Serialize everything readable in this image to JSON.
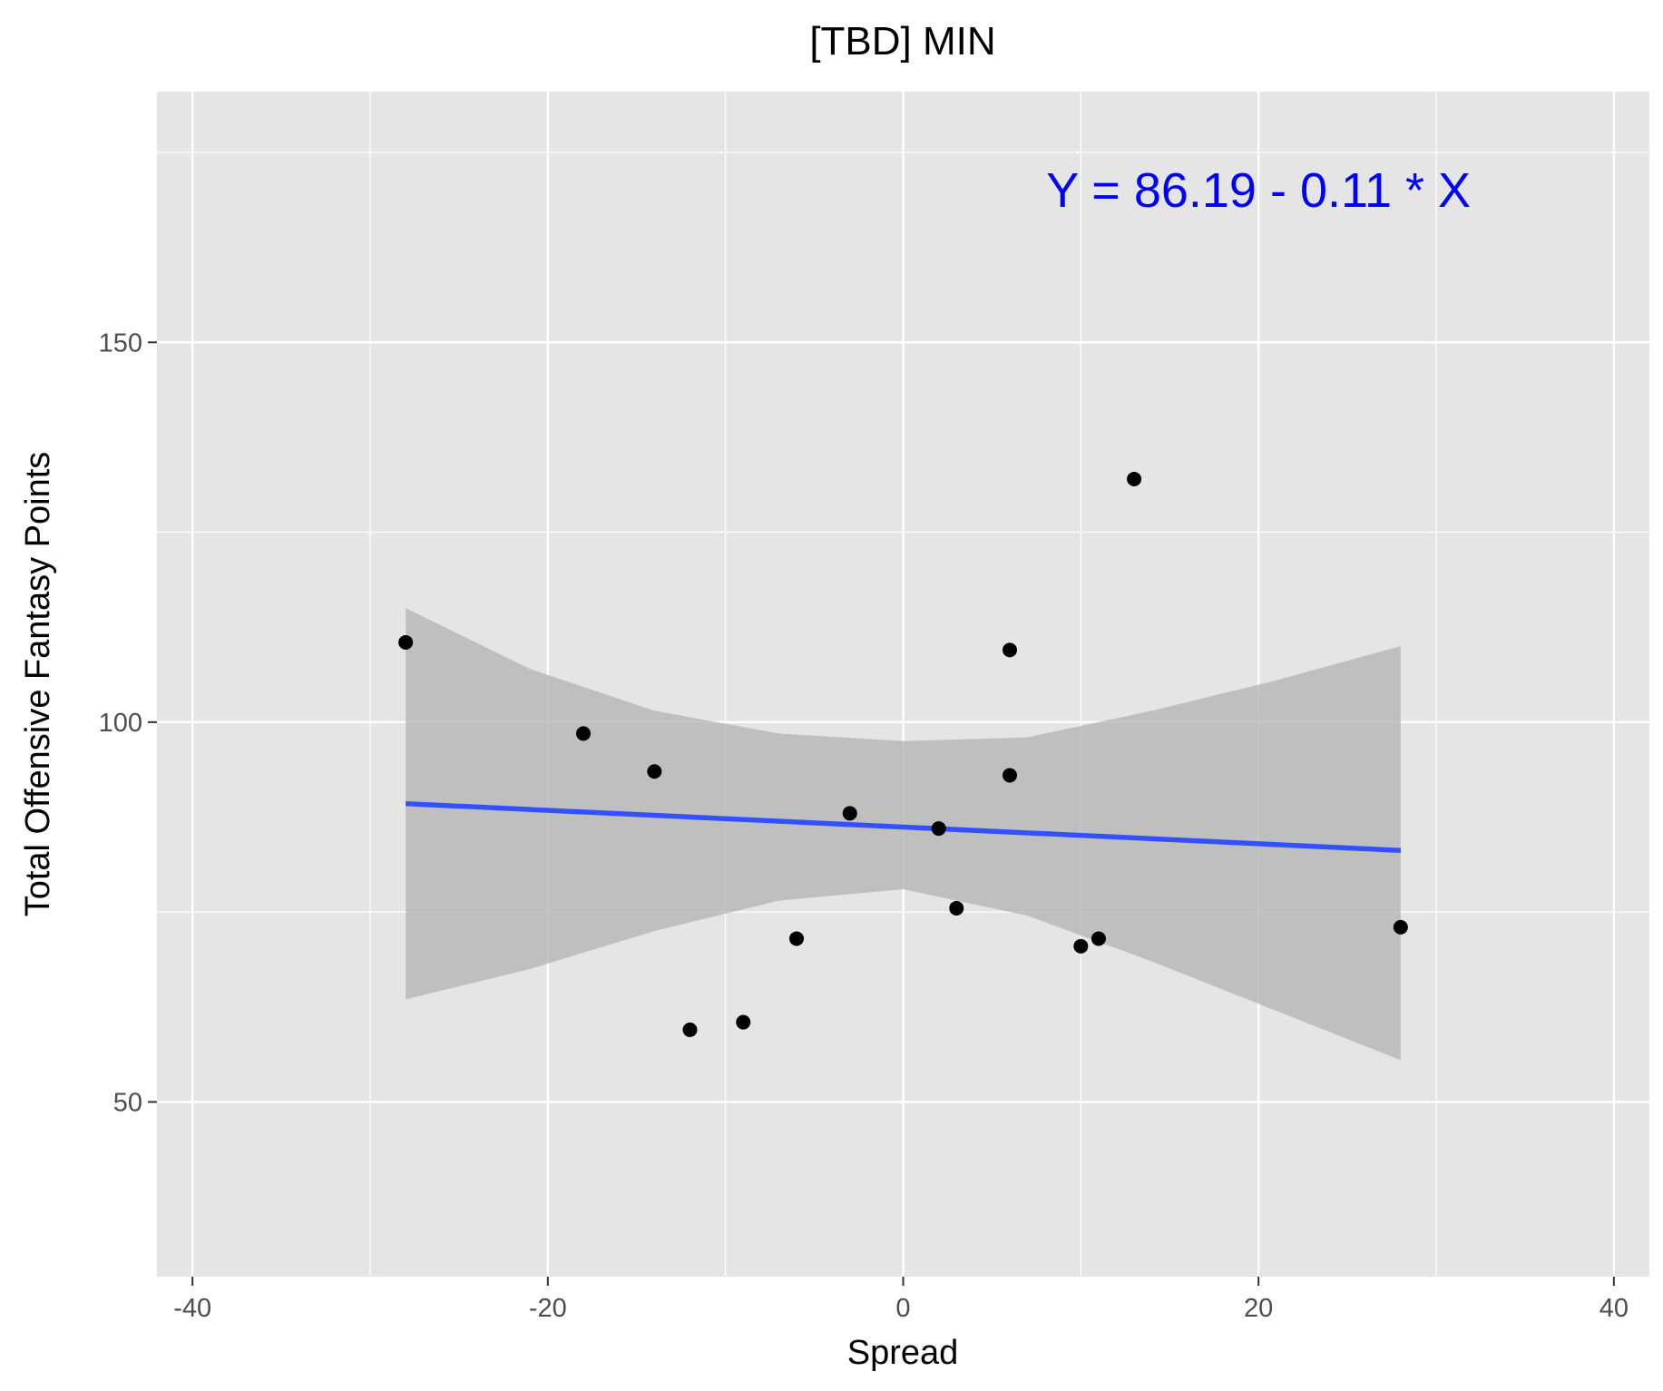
{
  "chart_data": {
    "type": "scatter",
    "title": "[TBD] MIN",
    "xlabel": "Spread",
    "ylabel": "Total Offensive Fantasy Points",
    "xlim": [
      -42,
      42
    ],
    "ylim": [
      27,
      183
    ],
    "x_ticks": [
      -40,
      -20,
      0,
      20,
      40
    ],
    "x_tick_labels": [
      "-40",
      "-20",
      "0",
      "20",
      "40"
    ],
    "x_minor_ticks": [
      -30,
      -10,
      10,
      30
    ],
    "y_ticks": [
      50,
      100,
      150
    ],
    "y_tick_labels": [
      "50",
      "100",
      "150"
    ],
    "y_minor_ticks": [
      25,
      75,
      125,
      175
    ],
    "grid": true,
    "series": [
      {
        "points": [
          {
            "x": -28,
            "y": 110.5
          },
          {
            "x": -18,
            "y": 98.5
          },
          {
            "x": -14,
            "y": 93.5
          },
          {
            "x": -12,
            "y": 59.5
          },
          {
            "x": -9,
            "y": 60.5
          },
          {
            "x": -6,
            "y": 71.5
          },
          {
            "x": -3,
            "y": 88
          },
          {
            "x": 2,
            "y": 86
          },
          {
            "x": 3,
            "y": 75.5
          },
          {
            "x": 6,
            "y": 109.5
          },
          {
            "x": 6,
            "y": 93
          },
          {
            "x": 10,
            "y": 70.5
          },
          {
            "x": 11,
            "y": 71.5
          },
          {
            "x": 13,
            "y": 132
          },
          {
            "x": 28,
            "y": 73
          }
        ]
      }
    ],
    "fit_line": {
      "intercept": 86.19,
      "slope": -0.11,
      "x_range": [
        -28,
        28
      ]
    },
    "confidence_band": [
      {
        "x": -28,
        "lower": 63.5,
        "upper": 115
      },
      {
        "x": -21,
        "lower": 67.5,
        "upper": 107
      },
      {
        "x": -14,
        "lower": 72.5,
        "upper": 101.5
      },
      {
        "x": -7,
        "lower": 76.5,
        "upper": 98.5
      },
      {
        "x": 0,
        "lower": 78,
        "upper": 97.5
      },
      {
        "x": 7,
        "lower": 74.5,
        "upper": 98
      },
      {
        "x": 14,
        "lower": 68.5,
        "upper": 101.5
      },
      {
        "x": 21,
        "lower": 62,
        "upper": 105.5
      },
      {
        "x": 28,
        "lower": 55.5,
        "upper": 110
      }
    ],
    "annotation": {
      "text": "Y = 86.19 - 0.11 * X",
      "x": 20,
      "y": 170
    },
    "colors": {
      "panel": "#e5e5e5",
      "grid": "#ffffff",
      "points": "#000000",
      "fit_line": "#3350ff",
      "band": "#b2b2b2",
      "annotation": "#0000ff"
    }
  }
}
